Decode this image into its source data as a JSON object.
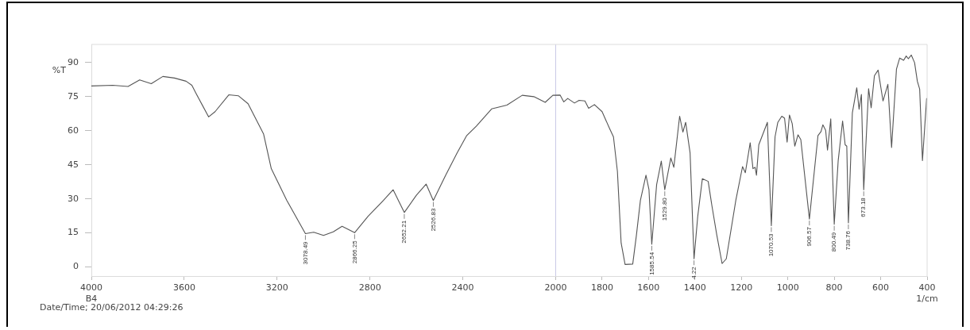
{
  "chart_data": {
    "type": "line",
    "xlabel": "1/cm",
    "ylabel": "%T",
    "color": "#555555",
    "marker": "none",
    "xlim": [
      4000,
      400
    ],
    "xticks": [
      4000,
      3600,
      3200,
      2800,
      2400,
      2000,
      1800,
      1600,
      1400,
      1200,
      1000,
      800,
      600,
      400
    ],
    "ylim": [
      -4,
      98
    ],
    "yticks": [
      0,
      15,
      30,
      45,
      60,
      75,
      90
    ],
    "ref_lines": [
      {
        "axis": "x",
        "value": 2000,
        "color": "#c8c8e6"
      }
    ],
    "x": [
      4000,
      3908,
      3842,
      3792,
      3742,
      3692,
      3642,
      3592,
      3567,
      3550,
      3495,
      3467,
      3408,
      3367,
      3325,
      3258,
      3225,
      3158,
      3078,
      3042,
      3000,
      2958,
      2920,
      2866,
      2808,
      2742,
      2700,
      2652,
      2600,
      2558,
      2527,
      2474,
      2424,
      2383,
      2342,
      2276,
      2210,
      2144,
      2094,
      2045,
      2012,
      1981,
      1965,
      1948,
      1919,
      1899,
      1874,
      1858,
      1833,
      1800,
      1767,
      1751,
      1734,
      1718,
      1701,
      1668,
      1652,
      1635,
      1611,
      1598,
      1586,
      1565,
      1545,
      1530,
      1504,
      1491,
      1466,
      1452,
      1440,
      1421,
      1404,
      1388,
      1368,
      1343,
      1327,
      1306,
      1283,
      1265,
      1224,
      1195,
      1183,
      1162,
      1150,
      1141,
      1135,
      1125,
      1088,
      1071,
      1055,
      1043,
      1026,
      1014,
      1003,
      993,
      981,
      970,
      956,
      944,
      907,
      870,
      857,
      849,
      837,
      829,
      815,
      800,
      783,
      764,
      753,
      746,
      739,
      722,
      703,
      693,
      683,
      673,
      652,
      641,
      627,
      611,
      590,
      569,
      553,
      532,
      518,
      501,
      490,
      481,
      468,
      454,
      442,
      432,
      420,
      402,
      400
    ],
    "values": [
      79.7,
      80,
      79.5,
      82.4,
      80.7,
      83.9,
      83.2,
      81.8,
      80,
      76.6,
      66.1,
      68.4,
      75.8,
      75.4,
      71.9,
      58.5,
      43.3,
      29.3,
      14.7,
      15.3,
      13.9,
      15.5,
      17.9,
      15.1,
      22.3,
      29.3,
      34,
      24,
      31.6,
      36.5,
      29.3,
      40.4,
      50.3,
      57.9,
      62,
      69.6,
      71.3,
      75.6,
      75,
      72.5,
      75.6,
      75.7,
      72.7,
      74.2,
      72.2,
      73.4,
      73.1,
      69.9,
      71.5,
      68.4,
      60.8,
      57.3,
      42.1,
      10.6,
      1.1,
      1.3,
      14.1,
      29.3,
      40.4,
      34,
      10,
      36.3,
      46.6,
      34,
      48,
      43.9,
      66.4,
      59.4,
      63.7,
      50.3,
      3.6,
      22.3,
      38.9,
      37.7,
      27,
      14.1,
      1.5,
      3.6,
      29.3,
      44.2,
      41.5,
      54.7,
      43.3,
      43.9,
      40.4,
      53.8,
      63.7,
      18.2,
      57.3,
      63.7,
      66.4,
      65.5,
      55,
      66.9,
      63.1,
      53.2,
      58.2,
      56.1,
      21.1,
      57.9,
      59.6,
      62.6,
      60.2,
      51.5,
      65.2,
      18.8,
      46.8,
      64.3,
      53.8,
      53.2,
      19.4,
      67.8,
      78.9,
      69.5,
      76,
      34,
      78.5,
      70.1,
      84.2,
      86.7,
      73.1,
      80.4,
      52.6,
      87.1,
      92,
      91,
      92.9,
      91.7,
      93.3,
      90,
      81.8,
      78.3,
      46.8,
      74.2,
      73.6
    ],
    "annotations": [
      {
        "text": "3078.49",
        "x": 3078,
        "y": 14.7
      },
      {
        "text": "2866.25",
        "x": 2866,
        "y": 15.1
      },
      {
        "text": "2652.21",
        "x": 2652,
        "y": 24
      },
      {
        "text": "2526.83",
        "x": 2527,
        "y": 29.3
      },
      {
        "text": "1585.54",
        "x": 1586,
        "y": 10
      },
      {
        "text": "1529.80",
        "x": 1530,
        "y": 34
      },
      {
        "text": "4.22",
        "x": 1404,
        "y": 3.6
      },
      {
        "text": "1070.53",
        "x": 1071,
        "y": 18.2
      },
      {
        "text": "906.57",
        "x": 907,
        "y": 21.1
      },
      {
        "text": "800.49",
        "x": 800,
        "y": 18.8
      },
      {
        "text": "738.76",
        "x": 739,
        "y": 19.4
      },
      {
        "text": "673.18",
        "x": 673,
        "y": 34
      },
      "B4",
      "Date/Time; 20/06/2012 04:29:26"
    ]
  }
}
